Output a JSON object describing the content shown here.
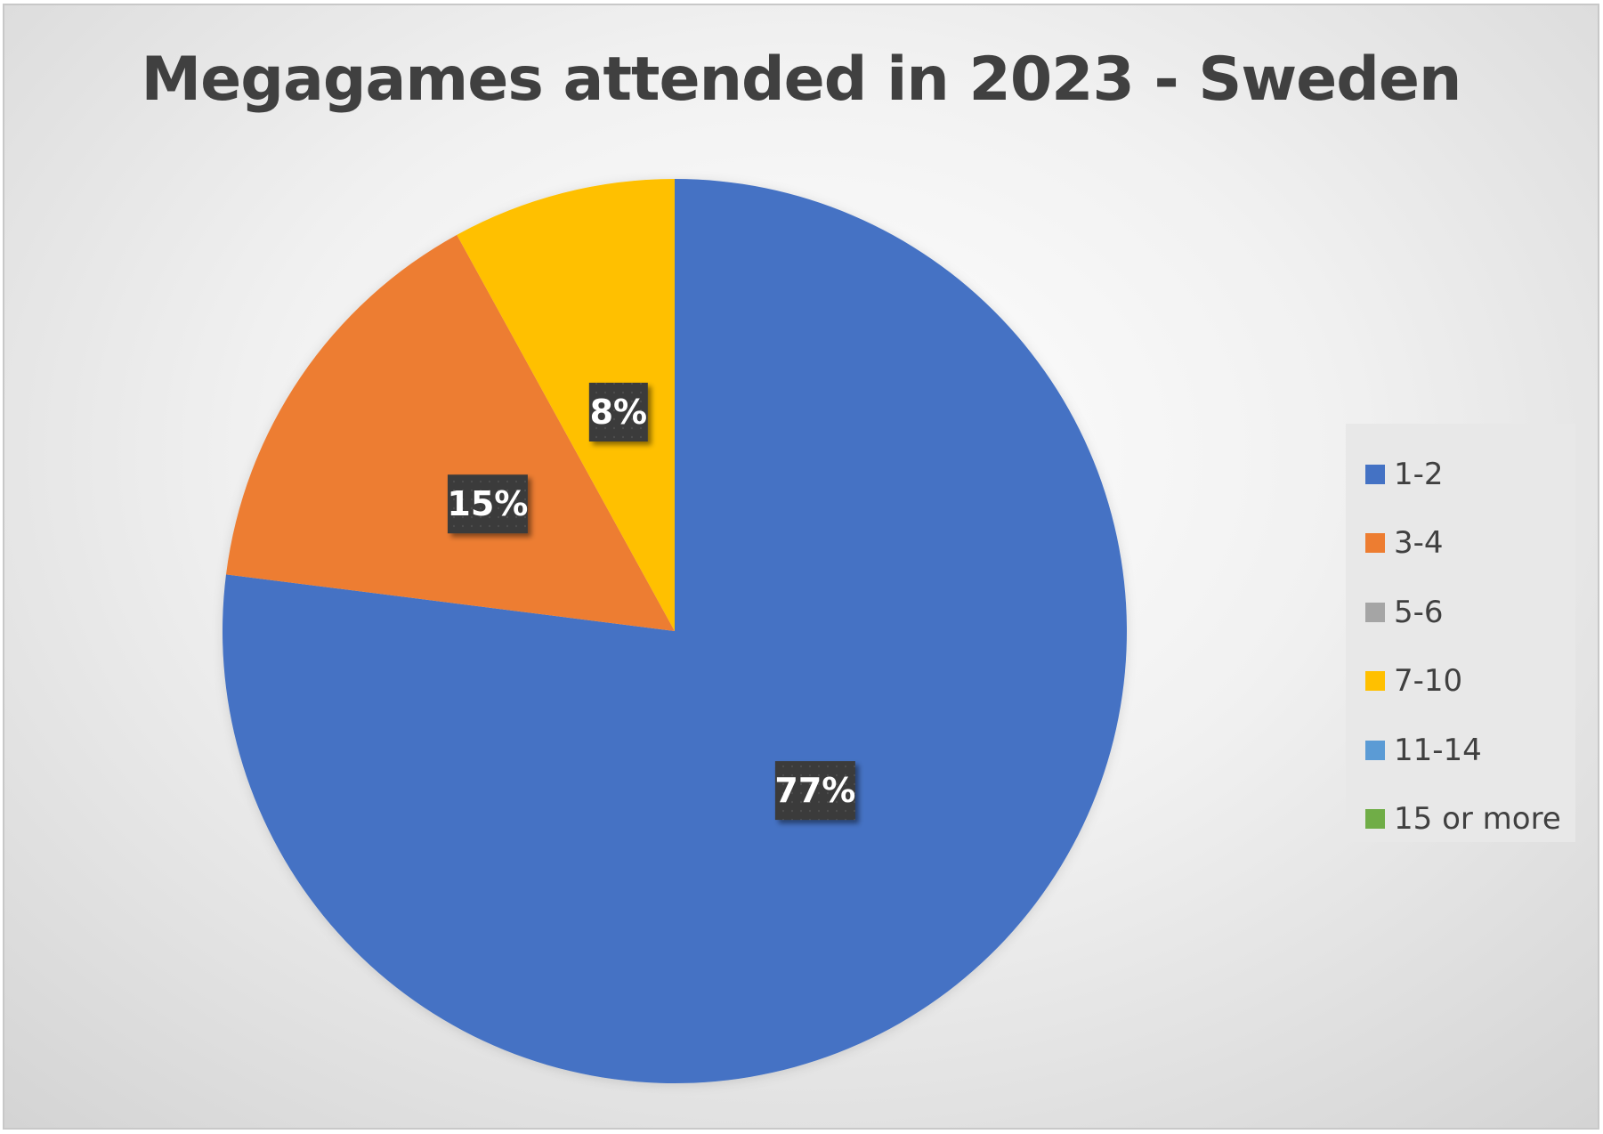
{
  "chart_data": {
    "type": "pie",
    "title": "Megagames attended in 2023 - Sweden",
    "categories": [
      "1-2",
      "3-4",
      "5-6",
      "7-10",
      "11-14",
      "15 or more"
    ],
    "values": [
      77,
      15,
      0,
      8,
      0,
      0
    ],
    "data_labels": [
      "77%",
      "15%",
      "",
      "8%",
      "",
      ""
    ],
    "colors": [
      "#4472C4",
      "#ED7D31",
      "#A5A5A5",
      "#FFC000",
      "#5B9BD5",
      "#70AD47"
    ],
    "start_angle_deg": 0,
    "direction": "clockwise",
    "legend_position": "right"
  }
}
